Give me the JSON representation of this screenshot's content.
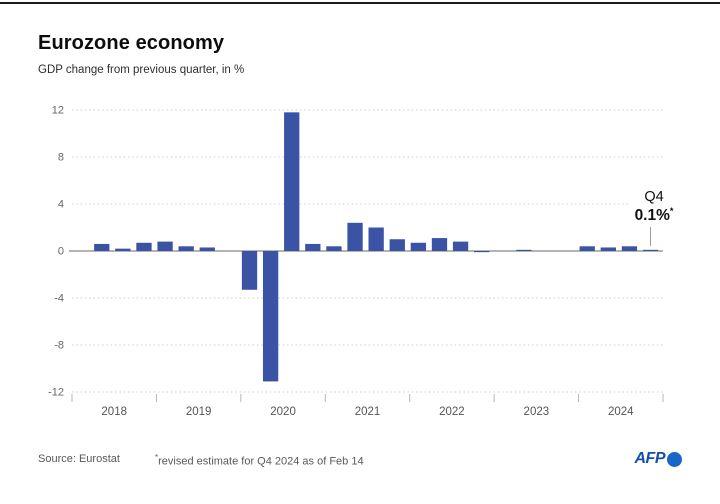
{
  "header": {
    "title": "Eurozone economy",
    "subtitle": "GDP change from previous quarter, in %"
  },
  "annotation": {
    "label": "Q4",
    "value": "0.1%",
    "asterisk": "*"
  },
  "footer": {
    "source": "Source: Eurostat",
    "footnote_asterisk": "*",
    "footnote_text": "revised estimate for Q4 2024 as of Feb 14",
    "logo_text": "AFP"
  },
  "colors": {
    "bar": "#3a53a4",
    "grid": "#cfcfcf",
    "zero_line": "#9c9c9c",
    "axis_text": "#666666",
    "tick": "#b5b5b5",
    "top_rule": "#1a1a1a",
    "afp_text": "#1550a8",
    "afp_circle": "#1a66c6"
  },
  "chart_data": {
    "type": "bar",
    "title": "Eurozone economy",
    "subtitle": "GDP change from previous quarter, in %",
    "ylim": [
      -12,
      12
    ],
    "yticks": [
      12,
      8,
      4,
      0,
      -4,
      -8,
      -12
    ],
    "grid": "horizontal-dotted",
    "legend": "none",
    "x_year_labels": [
      "2018",
      "2019",
      "2020",
      "2021",
      "2022",
      "2023",
      "2024"
    ],
    "quarters": [
      "2018-Q1",
      "2018-Q2",
      "2018-Q3",
      "2018-Q4",
      "2019-Q1",
      "2019-Q2",
      "2019-Q3",
      "2019-Q4",
      "2020-Q1",
      "2020-Q2",
      "2020-Q3",
      "2020-Q4",
      "2021-Q1",
      "2021-Q2",
      "2021-Q3",
      "2021-Q4",
      "2022-Q1",
      "2022-Q2",
      "2022-Q3",
      "2022-Q4",
      "2023-Q1",
      "2023-Q2",
      "2023-Q3",
      "2023-Q4",
      "2024-Q1",
      "2024-Q2",
      "2024-Q3",
      "2024-Q4"
    ],
    "values": [
      null,
      0.6,
      0.2,
      0.7,
      0.8,
      0.4,
      0.3,
      0.0,
      -3.3,
      -11.1,
      11.8,
      0.6,
      0.4,
      2.4,
      2.0,
      1.0,
      0.7,
      1.1,
      0.8,
      -0.1,
      0.0,
      0.1,
      0.0,
      0.0,
      0.4,
      0.3,
      0.4,
      0.1
    ],
    "highlight": {
      "quarter": "2024-Q4",
      "label": "Q4",
      "value": 0.1,
      "note": "revised estimate for Q4 2024 as of Feb 14"
    }
  }
}
